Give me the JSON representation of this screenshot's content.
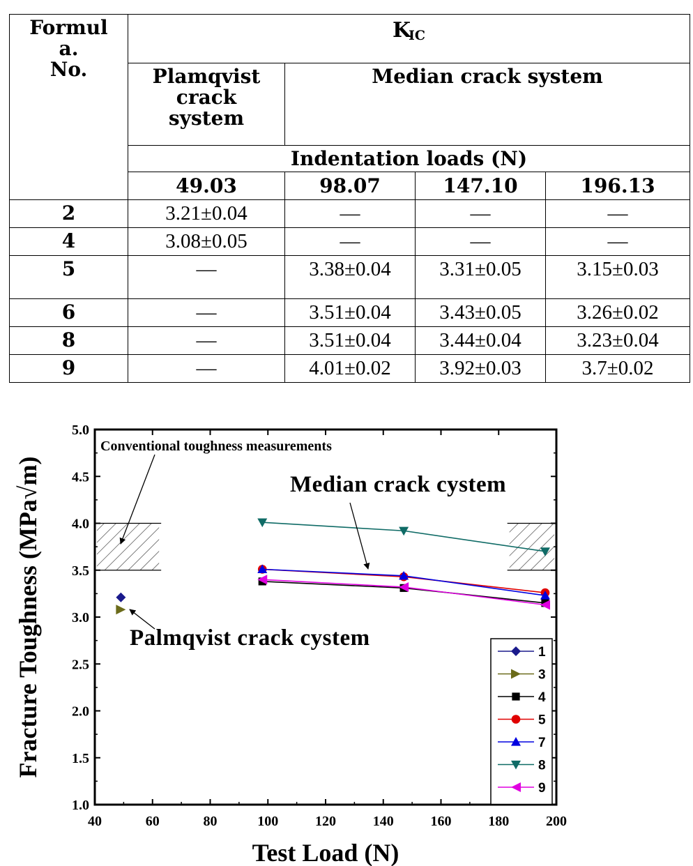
{
  "table": {
    "header_col": "Formul\na.\nNo.",
    "kic_main": "K",
    "kic_sub": "IC",
    "plam": "Plamqvist crack system",
    "median": "Median crack system",
    "indent": "Indentation loads (N)",
    "loads": [
      "49.03",
      "98.07",
      "147.10",
      "196.13"
    ],
    "rows": [
      {
        "no": "2",
        "cells": [
          "3.21±0.04",
          "—",
          "—",
          "—"
        ]
      },
      {
        "no": "4",
        "cells": [
          "3.08±0.05",
          "—",
          "—",
          "—"
        ]
      },
      {
        "no": "5",
        "cells": [
          "—",
          "3.38±0.04",
          "3.31±0.05",
          "3.15±0.03"
        ]
      },
      {
        "no": "6",
        "cells": [
          "—",
          "3.51±0.04",
          "3.43±0.05",
          "3.26±0.02"
        ]
      },
      {
        "no": "8",
        "cells": [
          "—",
          "3.51±0.04",
          "3.44±0.04",
          "3.23±0.04"
        ]
      },
      {
        "no": "9",
        "cells": [
          "—",
          "4.01±0.02",
          "3.92±0.03",
          "3.7±0.02"
        ]
      }
    ]
  },
  "chart_data": {
    "type": "line",
    "xlabel": "Test Load (N)",
    "ylabel": "Fracture Toughness (MPa√m)",
    "xlim": [
      40,
      200
    ],
    "ylim": [
      1.0,
      5.0
    ],
    "xticks": [
      "40",
      "60",
      "80",
      "100",
      "120",
      "140",
      "160",
      "180",
      "200"
    ],
    "yticks": [
      "1.0",
      "1.5",
      "2.0",
      "2.5",
      "3.0",
      "3.5",
      "4.0",
      "4.5",
      "5.0"
    ],
    "annotations": [
      "Conventional toughness measurements",
      "Median crack cystem",
      "Palmqvist crack cystem"
    ],
    "conventional_band": [
      3.5,
      4.0
    ],
    "legend_position": "bottom-right",
    "series": [
      {
        "name": "1",
        "color": "#1a1a8c",
        "marker": "diamond",
        "x": [
          49.03
        ],
        "y": [
          3.21
        ]
      },
      {
        "name": "3",
        "color": "#6b6b1a",
        "marker": "triangle-right",
        "x": [
          49.03
        ],
        "y": [
          3.08
        ]
      },
      {
        "name": "4",
        "color": "#000000",
        "marker": "square",
        "x": [
          98.07,
          147.1,
          196.13
        ],
        "y": [
          3.38,
          3.31,
          3.15
        ]
      },
      {
        "name": "5",
        "color": "#e00000",
        "marker": "circle",
        "x": [
          98.07,
          147.1,
          196.13
        ],
        "y": [
          3.51,
          3.43,
          3.26
        ]
      },
      {
        "name": "7",
        "color": "#0000e0",
        "marker": "triangle-up",
        "x": [
          98.07,
          147.1,
          196.13
        ],
        "y": [
          3.51,
          3.44,
          3.23
        ]
      },
      {
        "name": "8",
        "color": "#0f6b66",
        "marker": "triangle-down",
        "x": [
          98.07,
          147.1,
          196.13
        ],
        "y": [
          4.01,
          3.92,
          3.7
        ]
      },
      {
        "name": "9",
        "color": "#e000e0",
        "marker": "triangle-left",
        "x": [
          98.07,
          147.1,
          196.13
        ],
        "y": [
          3.4,
          3.32,
          3.13
        ]
      }
    ]
  }
}
